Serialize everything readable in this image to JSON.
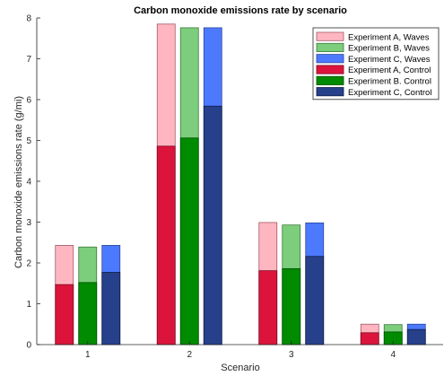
{
  "chart_data": {
    "type": "bar",
    "title": "Carbon monoxide emissions rate by scenario",
    "xlabel": "Scenario",
    "ylabel": "Carbon monoxide emissions rate (g/mi)",
    "categories": [
      "1",
      "2",
      "3",
      "4"
    ],
    "ylim": [
      0,
      8
    ],
    "yticks": [
      0,
      1,
      2,
      3,
      4,
      5,
      6,
      7,
      8
    ],
    "grid": false,
    "legend_placement": "top-right",
    "overlay": "Control bars drawn in front of Waves bars",
    "series": [
      {
        "name": "Experiment A, Waves",
        "values": [
          2.43,
          7.85,
          2.99,
          0.5
        ],
        "color": "#ffb6c1",
        "edge": "#a05a66"
      },
      {
        "name": "Experiment B, Waves",
        "values": [
          2.39,
          7.76,
          2.93,
          0.49
        ],
        "color": "#7ccd7c",
        "edge": "#3f7a3f"
      },
      {
        "name": "Experiment C, Waves",
        "values": [
          2.43,
          7.76,
          2.98,
          0.5
        ],
        "color": "#4d79ff",
        "edge": "#2a4699"
      },
      {
        "name": "Experiment A, Control",
        "values": [
          1.47,
          4.86,
          1.81,
          0.29
        ],
        "color": "#dc143c",
        "edge": "#7a0b21"
      },
      {
        "name": "Experiment B. Control",
        "values": [
          1.52,
          5.06,
          1.86,
          0.31
        ],
        "color": "#008b00",
        "edge": "#004d00"
      },
      {
        "name": "Experiment C, Control",
        "values": [
          1.77,
          5.84,
          2.16,
          0.37
        ],
        "color": "#27408b",
        "edge": "#121f45"
      }
    ]
  }
}
